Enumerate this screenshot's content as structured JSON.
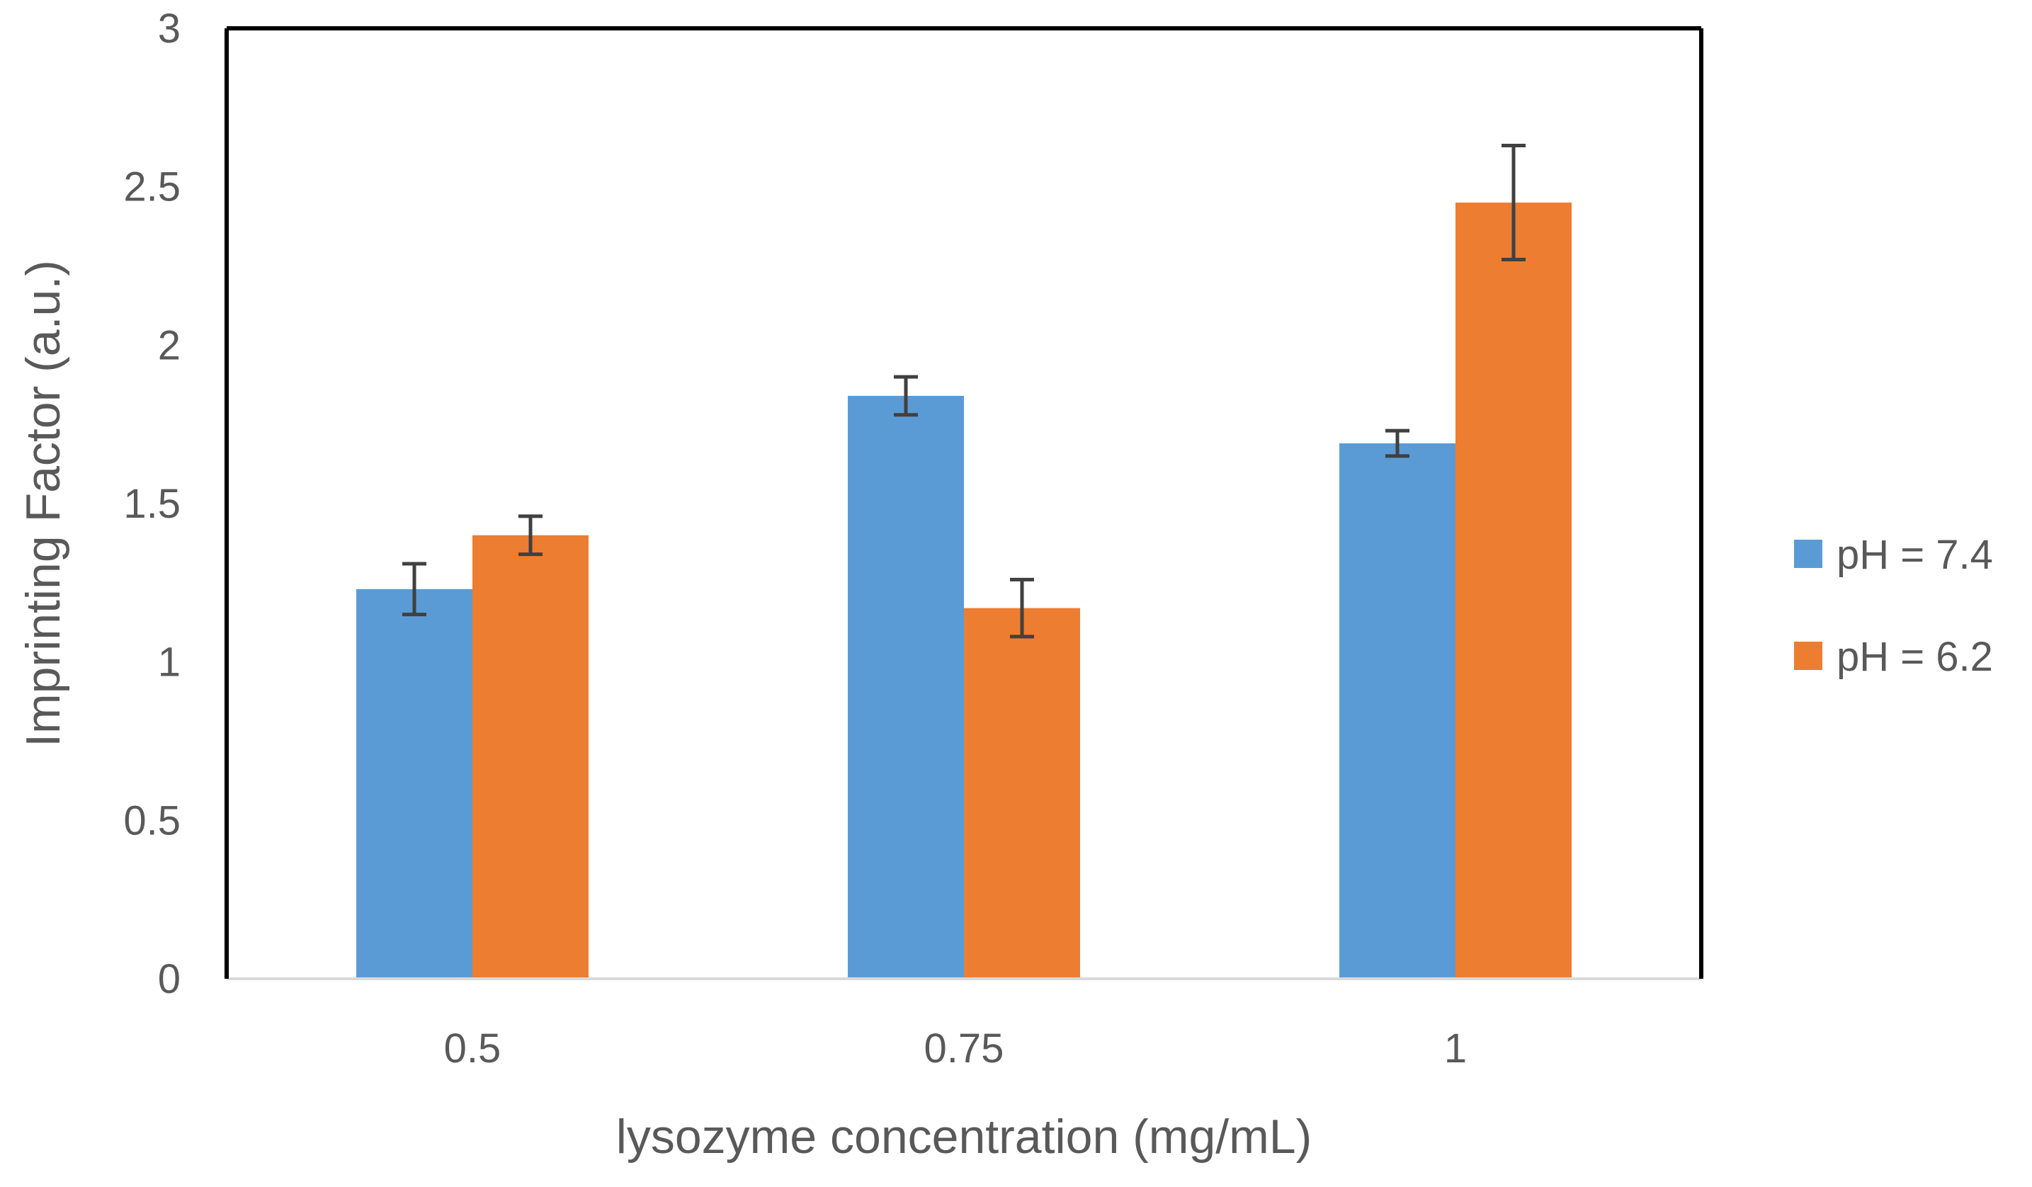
{
  "chart_data": {
    "type": "bar",
    "title": "",
    "xlabel": "lysozyme concentration (mg/mL)",
    "ylabel": "Imprinting Factor (a.u.)",
    "categories": [
      "0.5",
      "0.75",
      "1"
    ],
    "ylim": [
      0,
      3
    ],
    "yticks": [
      0,
      0.5,
      1,
      1.5,
      2,
      2.5,
      3
    ],
    "ytick_labels": [
      "0",
      "0.5",
      "1",
      "1.5",
      "2",
      "2.5",
      "3"
    ],
    "grid": false,
    "legend_position": "right",
    "series": [
      {
        "name": "pH = 7.4",
        "color": "#5B9BD5",
        "values": [
          1.23,
          1.84,
          1.69
        ],
        "errors": [
          0.08,
          0.06,
          0.04
        ]
      },
      {
        "name": "pH = 6.2",
        "color": "#ED7D31",
        "values": [
          1.4,
          1.17,
          2.45
        ],
        "errors": [
          0.06,
          0.09,
          0.18
        ]
      }
    ]
  },
  "colors": {
    "axis": "#000000",
    "text": "#595959",
    "errorbar": "#404040",
    "baseline": "#d9d9d9"
  }
}
